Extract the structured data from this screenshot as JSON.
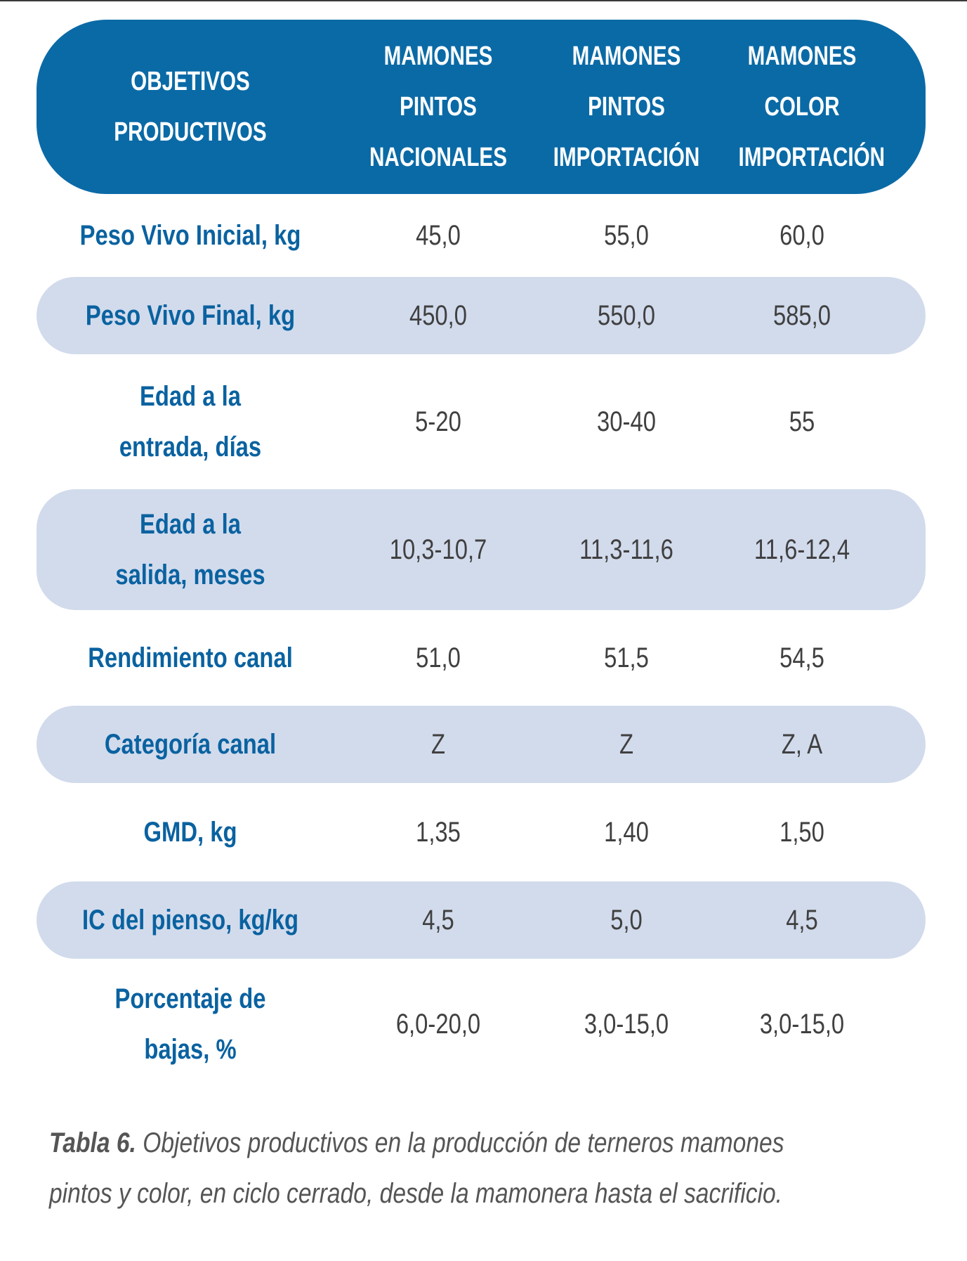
{
  "header": {
    "col0": [
      "OBJETIVOS",
      "PRODUCTIVOS"
    ],
    "col1": [
      "MAMONES",
      "PINTOS",
      "NACIONALES"
    ],
    "col2": [
      "MAMONES",
      "PINTOS",
      "IMPORTACIÓN"
    ],
    "col3": [
      "MAMONES",
      "COLOR",
      "IMPORTACIÓN"
    ]
  },
  "rows": [
    {
      "label": [
        "Peso Vivo Inicial, kg"
      ],
      "values": [
        "45,0",
        "55,0",
        "60,0"
      ]
    },
    {
      "label": [
        "Peso Vivo Final, kg"
      ],
      "values": [
        "450,0",
        "550,0",
        "585,0"
      ]
    },
    {
      "label": [
        "Edad a la",
        "entrada, días"
      ],
      "values": [
        "5-20",
        "30-40",
        "55"
      ]
    },
    {
      "label": [
        "Edad a la",
        "salida, meses"
      ],
      "values": [
        "10,3-10,7",
        "11,3-11,6",
        "11,6-12,4"
      ]
    },
    {
      "label": [
        "Rendimiento canal"
      ],
      "values": [
        "51,0",
        "51,5",
        "54,5"
      ]
    },
    {
      "label": [
        "Categoría canal"
      ],
      "values": [
        "Z",
        "Z",
        "Z, A"
      ]
    },
    {
      "label": [
        "GMD, kg"
      ],
      "values": [
        "1,35",
        "1,40",
        "1,50"
      ]
    },
    {
      "label": [
        "IC del pienso, kg/kg"
      ],
      "values": [
        "4,5",
        "5,0",
        "4,5"
      ]
    },
    {
      "label": [
        "Porcentaje de",
        "bajas, %"
      ],
      "values": [
        "6,0-20,0",
        "3,0-15,0",
        "3,0-15,0"
      ]
    }
  ],
  "caption": {
    "label": "Tabla 6.",
    "line1": " Objetivos productivos en la producción de terneros mamones",
    "line2": "pintos y color, en ciclo cerrado, desde la mamonera hasta el sacrificio."
  },
  "colors": {
    "header_bg": "#0a6aa6",
    "label_text": "#0a62a0",
    "shaded_row": "#d2dbec",
    "value_text": "#404040"
  }
}
